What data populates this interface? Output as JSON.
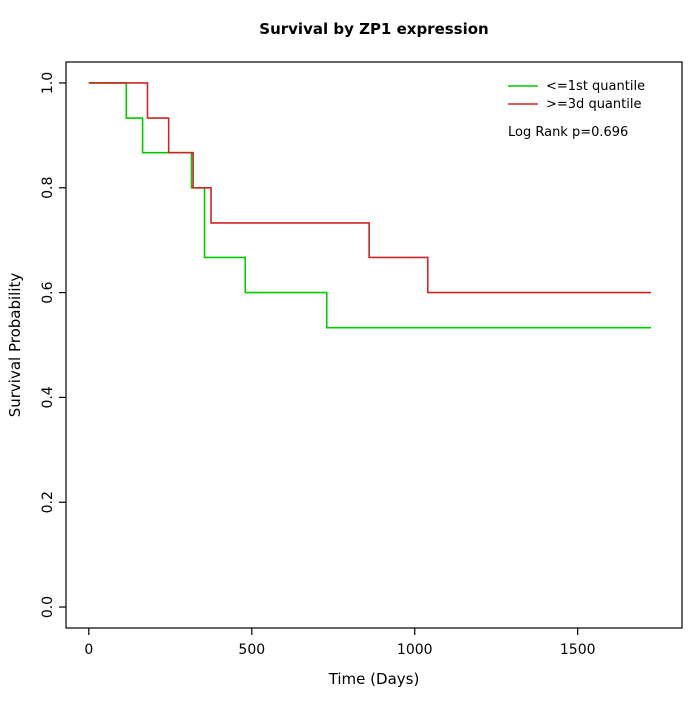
{
  "page": {
    "background": "#FFFFFF"
  },
  "chart_data": {
    "type": "line",
    "subtype": "kaplan-meier-step",
    "title": "Survival by ZP1 expression",
    "xlabel": "Time (Days)",
    "ylabel": "Survival Probability",
    "xlim": [
      0,
      1750
    ],
    "ylim": [
      0.0,
      1.0
    ],
    "x_ticks": [
      0,
      500,
      1000,
      1500
    ],
    "y_ticks": [
      0.0,
      0.2,
      0.4,
      0.6,
      0.8,
      1.0
    ],
    "grid": false,
    "legend_position": "top-right",
    "annotation": "Log Rank p=0.696",
    "axis_color": "#000000",
    "series": [
      {
        "name": "<=1st quantile",
        "color": "#00CC00",
        "end_time": 1725,
        "steps": [
          [
            0,
            1.0
          ],
          [
            115,
            0.933
          ],
          [
            165,
            0.867
          ],
          [
            315,
            0.8
          ],
          [
            355,
            0.667
          ],
          [
            480,
            0.6
          ],
          [
            730,
            0.533
          ]
        ]
      },
      {
        "name": ">=3d quantile",
        "color": "#CD2626",
        "end_time": 1725,
        "steps": [
          [
            0,
            1.0
          ],
          [
            180,
            0.933
          ],
          [
            245,
            0.867
          ],
          [
            320,
            0.8
          ],
          [
            375,
            0.733
          ],
          [
            860,
            0.667
          ],
          [
            1040,
            0.6
          ]
        ]
      }
    ]
  }
}
